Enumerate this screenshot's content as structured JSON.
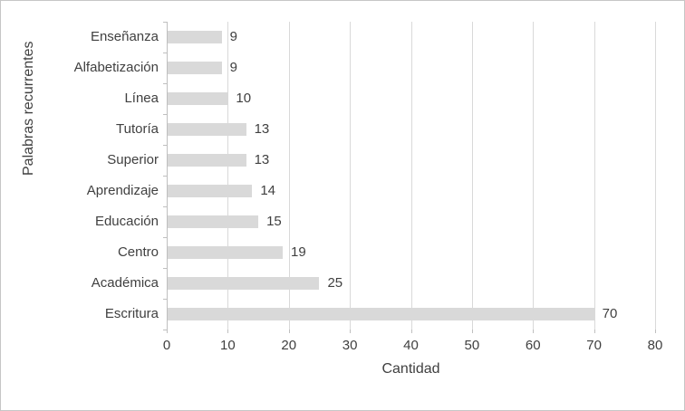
{
  "chart_data": {
    "type": "bar",
    "orientation": "horizontal",
    "categories": [
      "Enseñanza",
      "Alfabetización",
      "Línea",
      "Tutoría",
      "Superior",
      "Aprendizaje",
      "Educación",
      "Centro",
      "Académica",
      "Escritura"
    ],
    "values": [
      9,
      9,
      10,
      13,
      13,
      14,
      15,
      19,
      25,
      70
    ],
    "data_labels": [
      "9",
      "9",
      "10",
      "13",
      "13",
      "14",
      "15",
      "19",
      "25",
      "70"
    ],
    "xlabel": "Cantidad",
    "ylabel": "Palabras recurrentes",
    "xlim": [
      0,
      80
    ],
    "xticks": [
      0,
      10,
      20,
      30,
      40,
      50,
      60,
      70,
      80
    ],
    "grid": true,
    "legend": "none",
    "title": "",
    "colors": {
      "bar": "#d9d9d9",
      "gridline": "#d9d9d9",
      "axis_line": "#bfbfbf",
      "text": "#404040",
      "frame_border": "#c6c6c6",
      "background": "#ffffff"
    }
  }
}
